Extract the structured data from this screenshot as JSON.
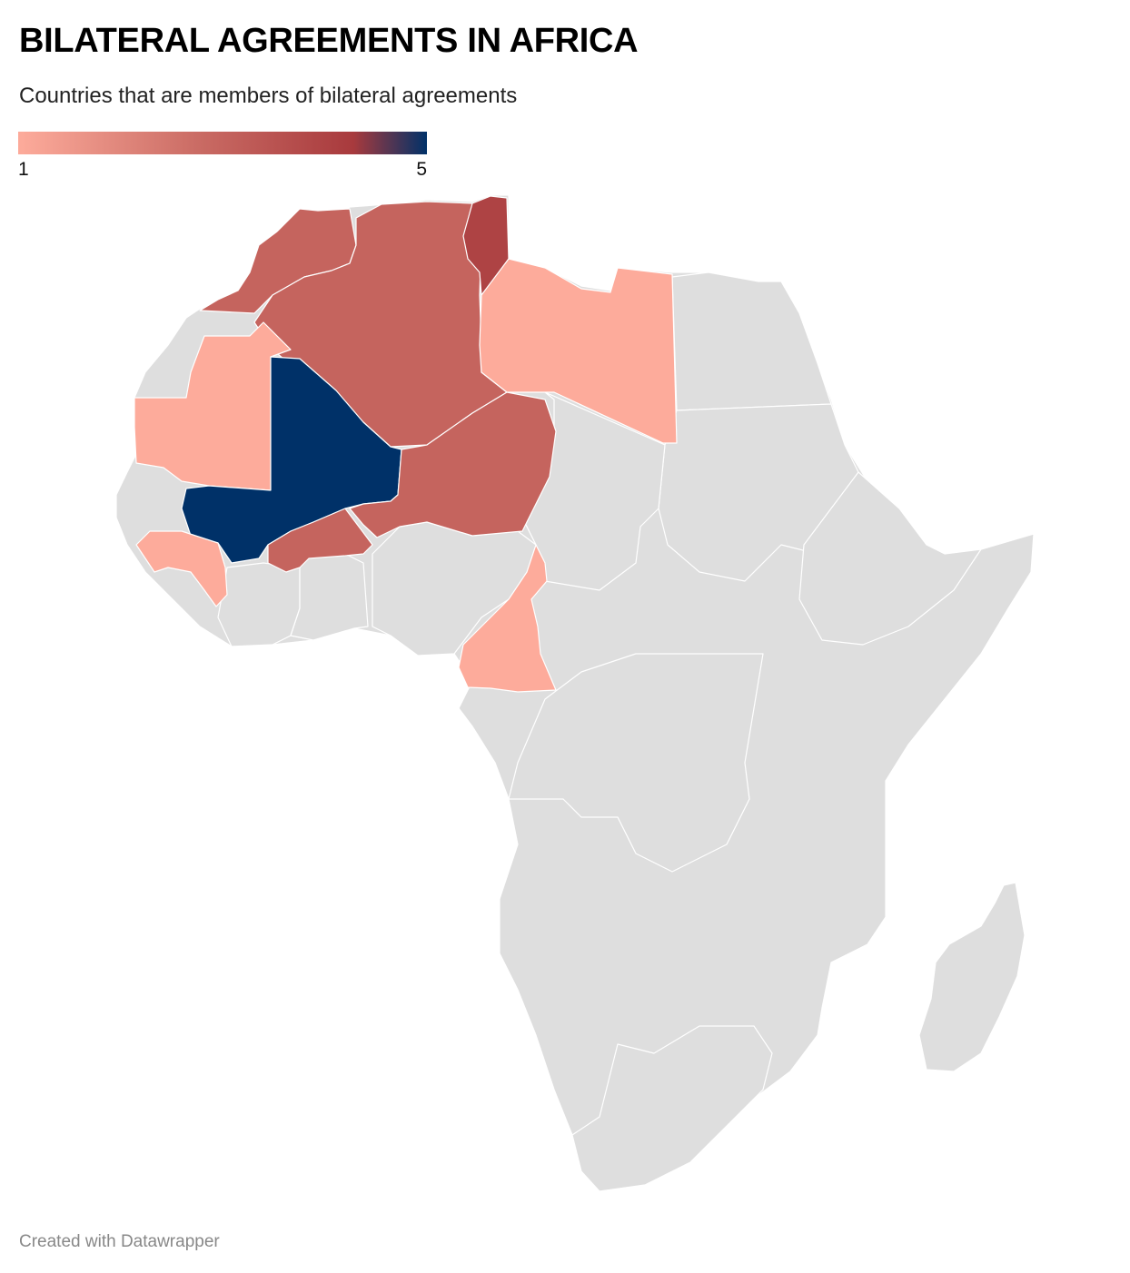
{
  "title": "BILATERAL AGREEMENTS IN AFRICA",
  "subtitle": "Countries that are members of bilateral agreements",
  "legend": {
    "min_label": "1",
    "max_label": "5",
    "min": 1,
    "max": 5,
    "gradient_colors": [
      "#fdab9b",
      "#c96a63",
      "#a83a3d",
      "#003168"
    ]
  },
  "colors": {
    "no_data": "#dedede",
    "border": "#ffffff"
  },
  "map_data": {
    "type": "choropleth",
    "region": "Africa",
    "values": [
      {
        "country": "Mali",
        "value": 5
      },
      {
        "country": "Tunisia",
        "value": 4
      },
      {
        "country": "Morocco",
        "value": 3
      },
      {
        "country": "Algeria",
        "value": 3
      },
      {
        "country": "Niger",
        "value": 3
      },
      {
        "country": "Burkina Faso",
        "value": 3
      },
      {
        "country": "Mauritania",
        "value": 1
      },
      {
        "country": "Libya",
        "value": 1
      },
      {
        "country": "Guinea",
        "value": 1
      },
      {
        "country": "Cameroon",
        "value": 1
      }
    ]
  },
  "footer": "Created with Datawrapper"
}
